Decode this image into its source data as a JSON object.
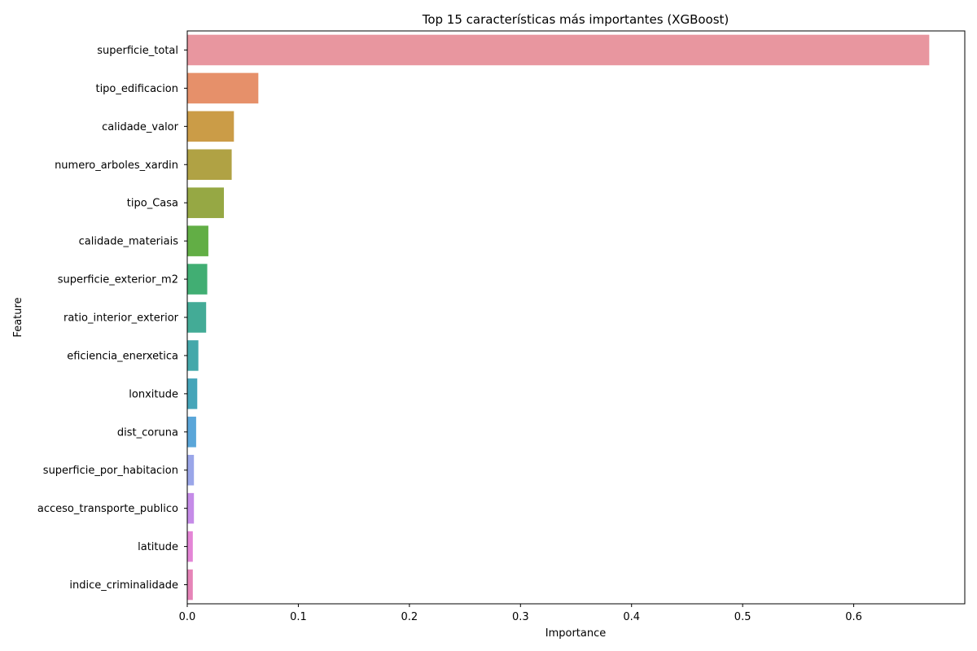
{
  "chart_data": {
    "type": "bar",
    "orientation": "horizontal",
    "title": "Top 15 características más importantes (XGBoost)",
    "xlabel": "Importance",
    "ylabel": "Feature",
    "xlim": [
      0,
      0.7
    ],
    "xticks": [
      0.0,
      0.1,
      0.2,
      0.3,
      0.4,
      0.5,
      0.6
    ],
    "xtick_labels": [
      "0.0",
      "0.1",
      "0.2",
      "0.3",
      "0.4",
      "0.5",
      "0.6"
    ],
    "grid": false,
    "categories": [
      "superficie_total",
      "tipo_edificacion",
      "calidade_valor",
      "numero_arboles_xardin",
      "tipo_Casa",
      "calidade_materiais",
      "superficie_exterior_m2",
      "ratio_interior_exterior",
      "eficiencia_enerxetica",
      "lonxitude",
      "dist_coruna",
      "superficie_por_habitacion",
      "acceso_transporte_publico",
      "latitude",
      "indice_criminalidade"
    ],
    "values": [
      0.668,
      0.064,
      0.042,
      0.04,
      0.033,
      0.019,
      0.018,
      0.017,
      0.01,
      0.009,
      0.008,
      0.006,
      0.006,
      0.005,
      0.005
    ],
    "colors": [
      "#e8969f",
      "#e6906a",
      "#cb9c47",
      "#b0a244",
      "#96a844",
      "#62ae45",
      "#41ae73",
      "#43ab96",
      "#44a8aa",
      "#45a5b9",
      "#5aa6d9",
      "#9aa6e9",
      "#c58be8",
      "#e485d6",
      "#e684b8"
    ]
  }
}
